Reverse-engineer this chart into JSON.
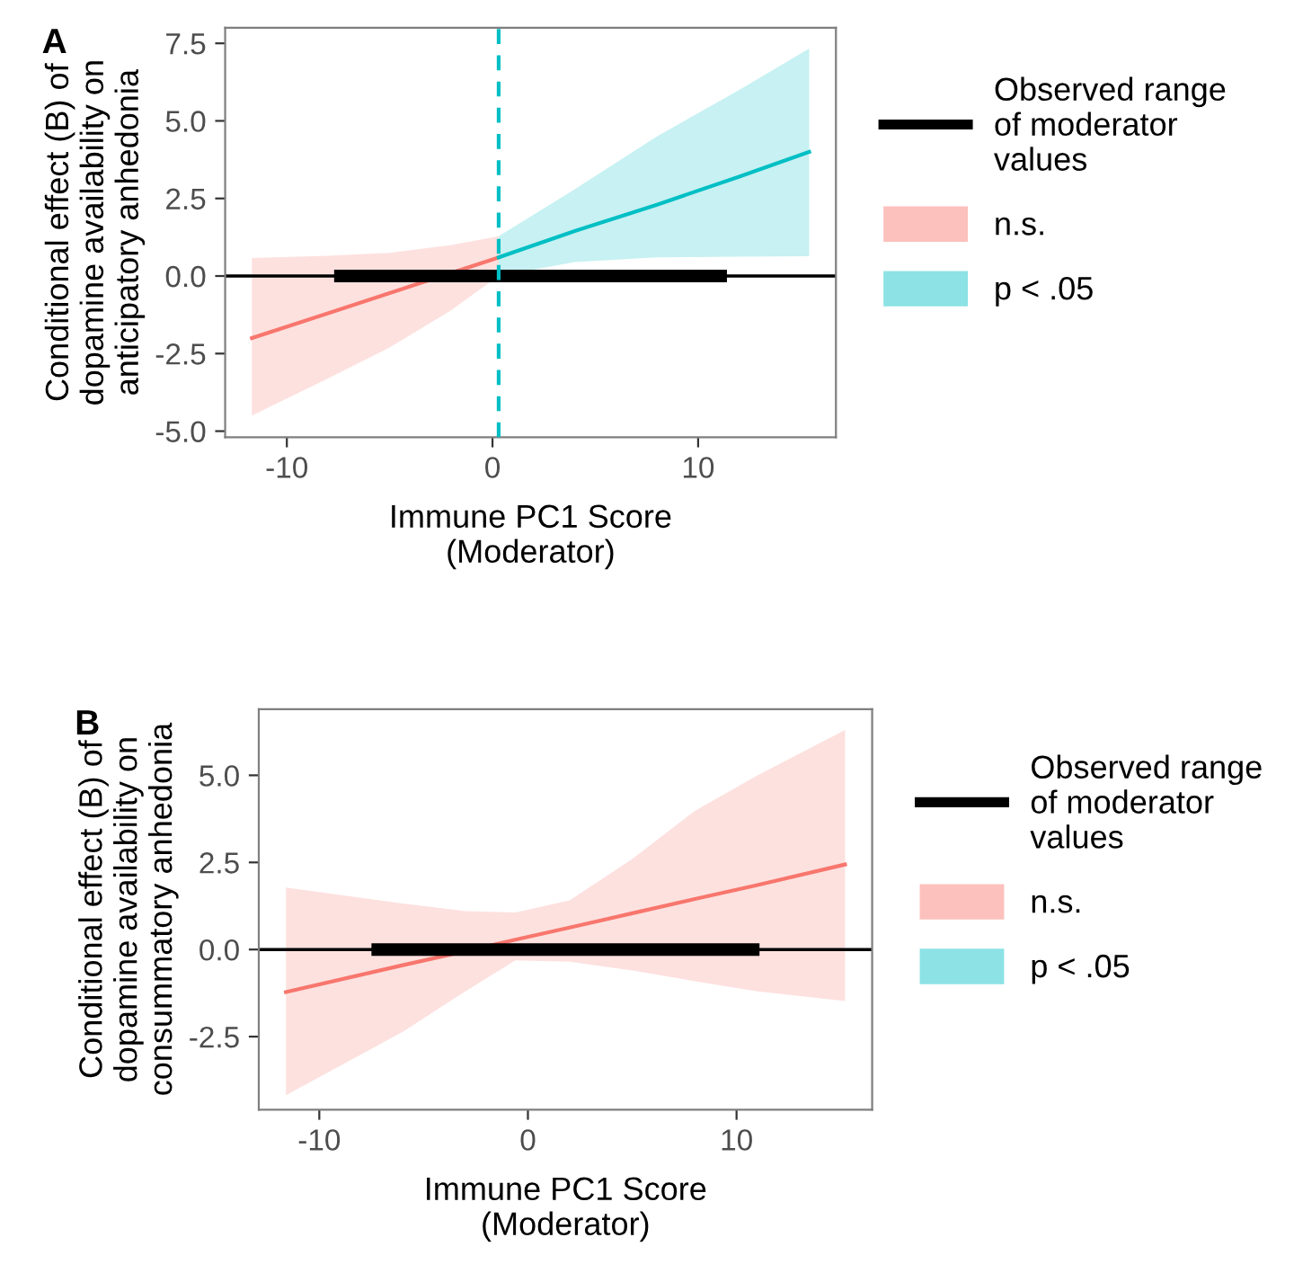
{
  "chart_data": [
    {
      "type": "line",
      "title": "A",
      "xlabel": "Immune PC1 Score (Moderator)",
      "ylabel": "Conditional effect (B) of dopamine availability on anticipatory anhedonia",
      "xlim": [
        -13.0,
        16.7
      ],
      "ylim": [
        -5.2,
        8.0
      ],
      "xticks": [
        -10,
        0,
        10
      ],
      "yticks": [
        {
          "value": -5,
          "label": "-5.0"
        },
        {
          "value": -2.5,
          "label": "-2.5"
        },
        {
          "value": 0,
          "label": "0.0"
        },
        {
          "value": 2.5,
          "label": "2.5"
        },
        {
          "value": 5,
          "label": "5.0"
        },
        {
          "value": 7.5,
          "label": "7.5"
        }
      ],
      "grid": false,
      "legend": "right",
      "series": [
        {
          "name": "Observed range of moderator values",
          "color": "#000000",
          "x": [
            -7.7,
            11.4
          ],
          "values": [
            0,
            0
          ]
        },
        {
          "name": "n.s.",
          "color": "#F8766D",
          "x": [
            -11.7,
            -8,
            -5,
            -2,
            0.3
          ],
          "values": [
            -2.0,
            -1.2,
            -0.55,
            0.1,
            0.6
          ],
          "lower": [
            -4.5,
            -3.3,
            -2.3,
            -1.1,
            0.0
          ],
          "upper": [
            0.58,
            0.65,
            0.75,
            1.0,
            1.28
          ]
        },
        {
          "name": "p < .05",
          "color": "#00BFC4",
          "x": [
            0.3,
            4,
            8,
            12,
            15.4
          ],
          "values": [
            0.6,
            1.45,
            2.3,
            3.2,
            4.0
          ],
          "lower": [
            0.0,
            0.45,
            0.6,
            0.62,
            0.64
          ],
          "upper": [
            1.28,
            2.8,
            4.5,
            6.0,
            7.33
          ]
        }
      ],
      "ref_lines": [
        {
          "axis": "y",
          "value": 0,
          "color": "#000000",
          "line_style": "solid"
        },
        {
          "axis": "x",
          "value": 0.3,
          "color": "#00BFC4",
          "line_style": "dashed"
        }
      ]
    },
    {
      "type": "line",
      "title": "B",
      "xlabel": "Immune PC1 Score (Moderator)",
      "ylabel": "Conditional effect (B) of dopamine availability on consummatory anhedonia",
      "xlim": [
        -12.9,
        16.5
      ],
      "ylim": [
        -4.6,
        6.9
      ],
      "xticks": [
        -10,
        0,
        10
      ],
      "yticks": [
        {
          "value": -2.5,
          "label": "-2.5"
        },
        {
          "value": 0,
          "label": "0.0"
        },
        {
          "value": 2.5,
          "label": "2.5"
        },
        {
          "value": 5,
          "label": "5.0"
        }
      ],
      "grid": false,
      "legend": "right",
      "series": [
        {
          "name": "Observed range of moderator values",
          "color": "#000000",
          "x": [
            -7.5,
            11.1
          ],
          "values": [
            0,
            0
          ]
        },
        {
          "name": "n.s.",
          "color": "#F8766D",
          "x": [
            -11.6,
            -6,
            -3,
            -0.6,
            2,
            5,
            8,
            11,
            15.2
          ],
          "values": [
            -1.22,
            -0.45,
            -0.05,
            0.28,
            0.63,
            1.04,
            1.45,
            1.85,
            2.44
          ],
          "lower": [
            -4.18,
            -2.36,
            -1.2,
            -0.31,
            -0.35,
            -0.6,
            -0.91,
            -1.2,
            -1.48
          ],
          "upper": [
            1.78,
            1.32,
            1.1,
            1.06,
            1.41,
            2.6,
            3.98,
            5.0,
            6.3
          ]
        },
        {
          "name": "p < .05",
          "color": "#00BFC4"
        }
      ],
      "ref_lines": [
        {
          "axis": "y",
          "value": 0,
          "color": "#000000",
          "line_style": "solid"
        }
      ]
    }
  ]
}
